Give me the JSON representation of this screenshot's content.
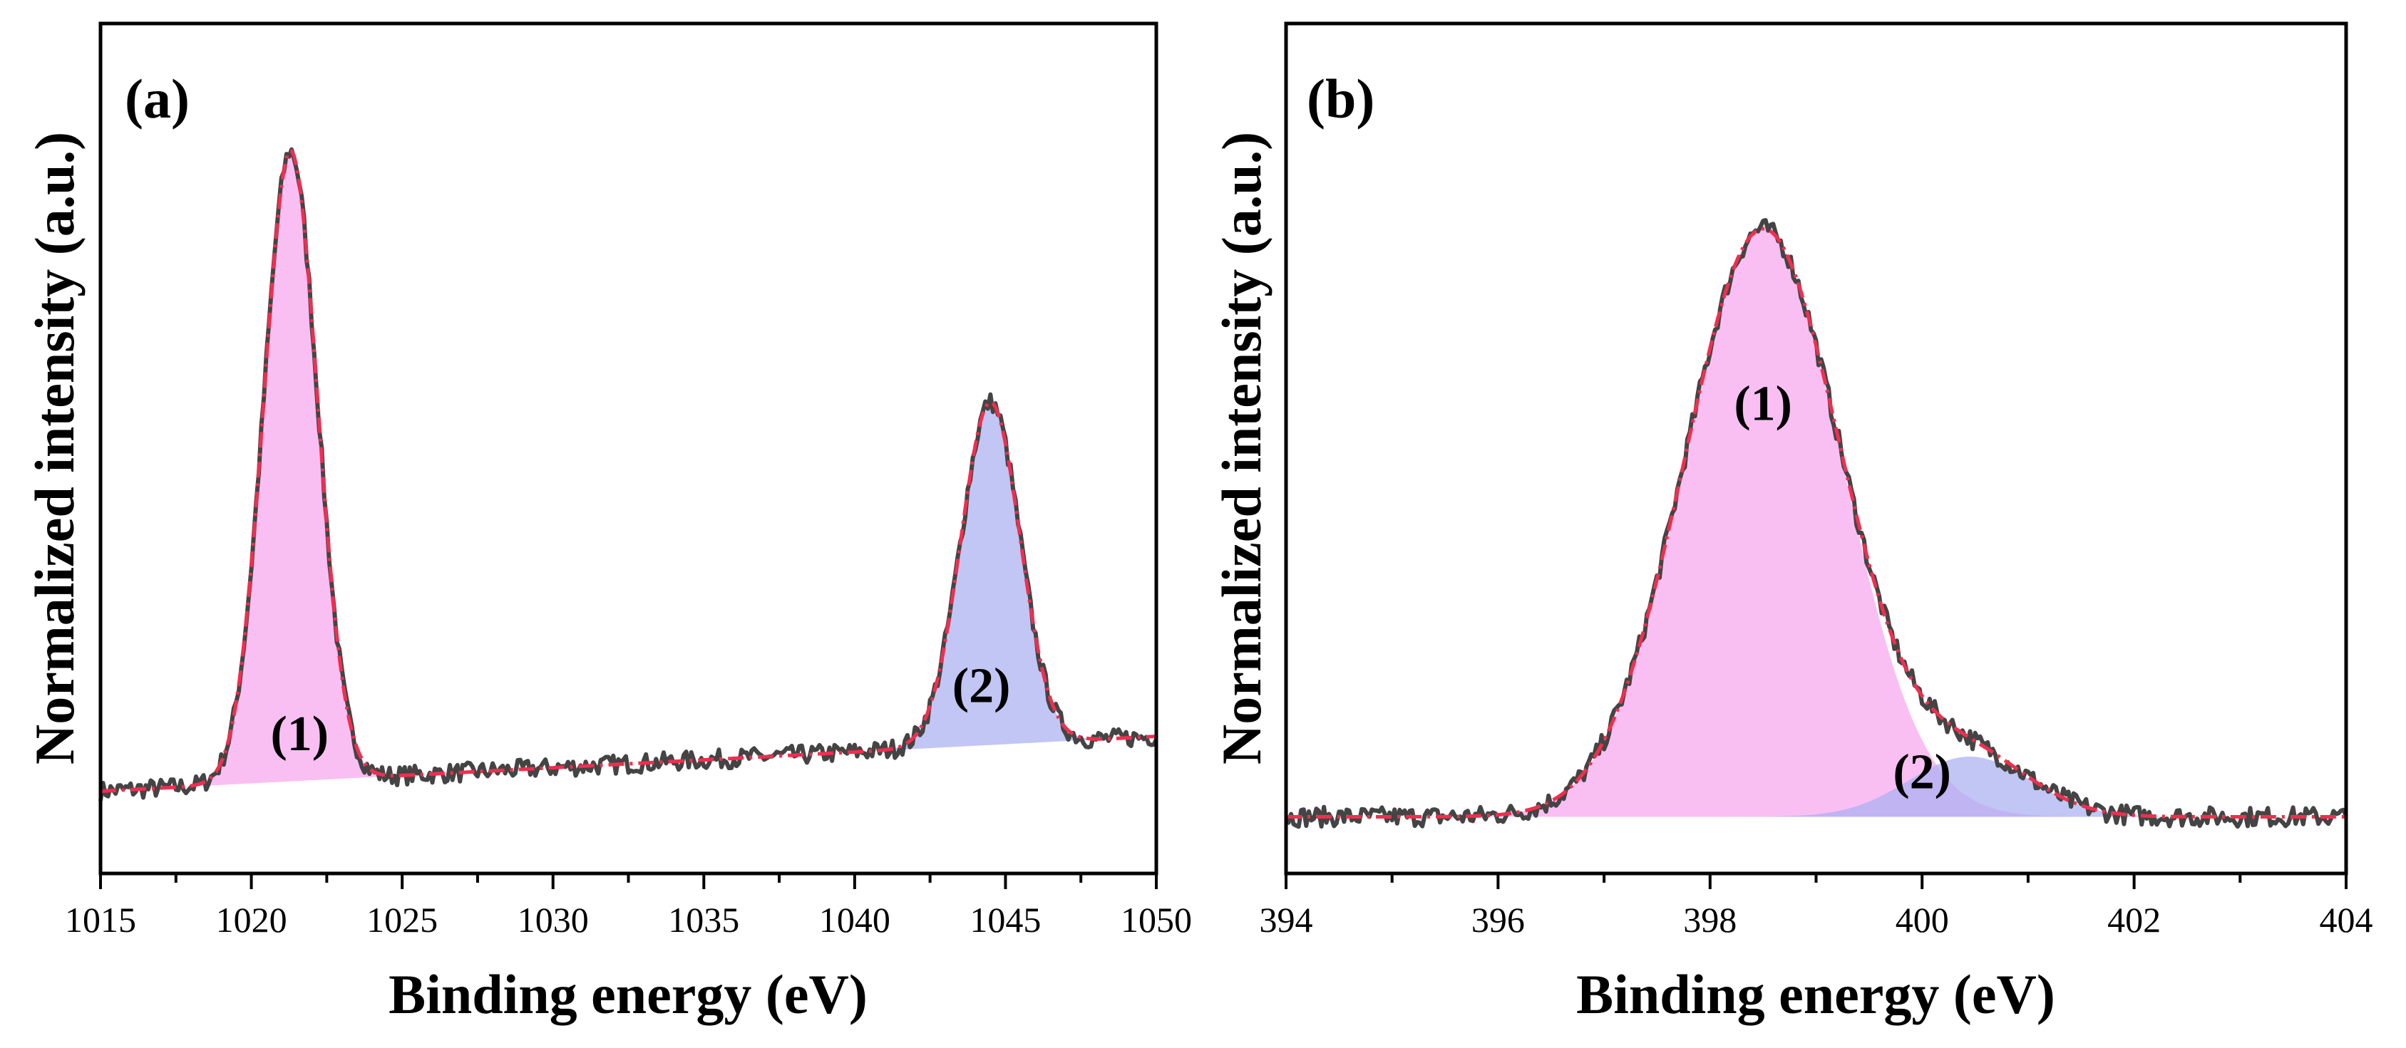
{
  "colors": {
    "data": "#444444",
    "fit": "#ef2f4f",
    "peak1": "#f7a6ee",
    "peak2": "#a9b0f1",
    "overlap": "#c99af0"
  },
  "chart_data": [
    {
      "type": "line",
      "panel_label": "(a)",
      "xlabel": "Binding energy (eV)",
      "ylabel": "Normalized intensity (a.u.)",
      "xlim": [
        1015,
        1050
      ],
      "ylim": [
        -0.12,
        1.12
      ],
      "xticks": [
        1015,
        1020,
        1025,
        1030,
        1035,
        1040,
        1045,
        1050
      ],
      "tick_labels": [
        "1015",
        "1020",
        "1025",
        "1030",
        "1035",
        "1040",
        "1045",
        "1050"
      ],
      "grid": false,
      "background": {
        "type": "linear",
        "x": [
          1015,
          1050
        ],
        "y": [
          0.0,
          0.08
        ]
      },
      "peaks": [
        {
          "label": "(1)",
          "center": 1021.3,
          "height": 0.92,
          "fwhm": 2.1,
          "fill": "#f7a6ee",
          "label_x": 1021.6,
          "label_y": 0.06
        },
        {
          "label": "(2)",
          "center": 1044.5,
          "height": 0.5,
          "fwhm": 2.3,
          "fill": "#a9b0f1",
          "label_x": 1044.2,
          "label_y": 0.13
        }
      ]
    },
    {
      "type": "line",
      "panel_label": "(b)",
      "xlabel": "Binding energy (eV)",
      "ylabel": "Normalized intensity (a.u.)",
      "xlim": [
        394,
        404
      ],
      "ylim": [
        -0.08,
        1.12
      ],
      "xticks": [
        394,
        396,
        398,
        400,
        402,
        404
      ],
      "tick_labels": [
        "394",
        "396",
        "398",
        "400",
        "402",
        "404"
      ],
      "grid": false,
      "background": {
        "type": "linear",
        "x": [
          394,
          404
        ],
        "y": [
          0.0,
          0.0
        ]
      },
      "peaks": [
        {
          "label": "(1)",
          "center": 398.5,
          "height": 0.83,
          "fwhm": 1.75,
          "fill": "#f7a6ee",
          "label_x": 398.5,
          "label_y": 0.56
        },
        {
          "label": "(2)",
          "center": 400.45,
          "height": 0.085,
          "fwhm": 1.35,
          "fill": "#a9b0f1",
          "label_x": 400.0,
          "label_y": 0.04
        }
      ]
    }
  ]
}
